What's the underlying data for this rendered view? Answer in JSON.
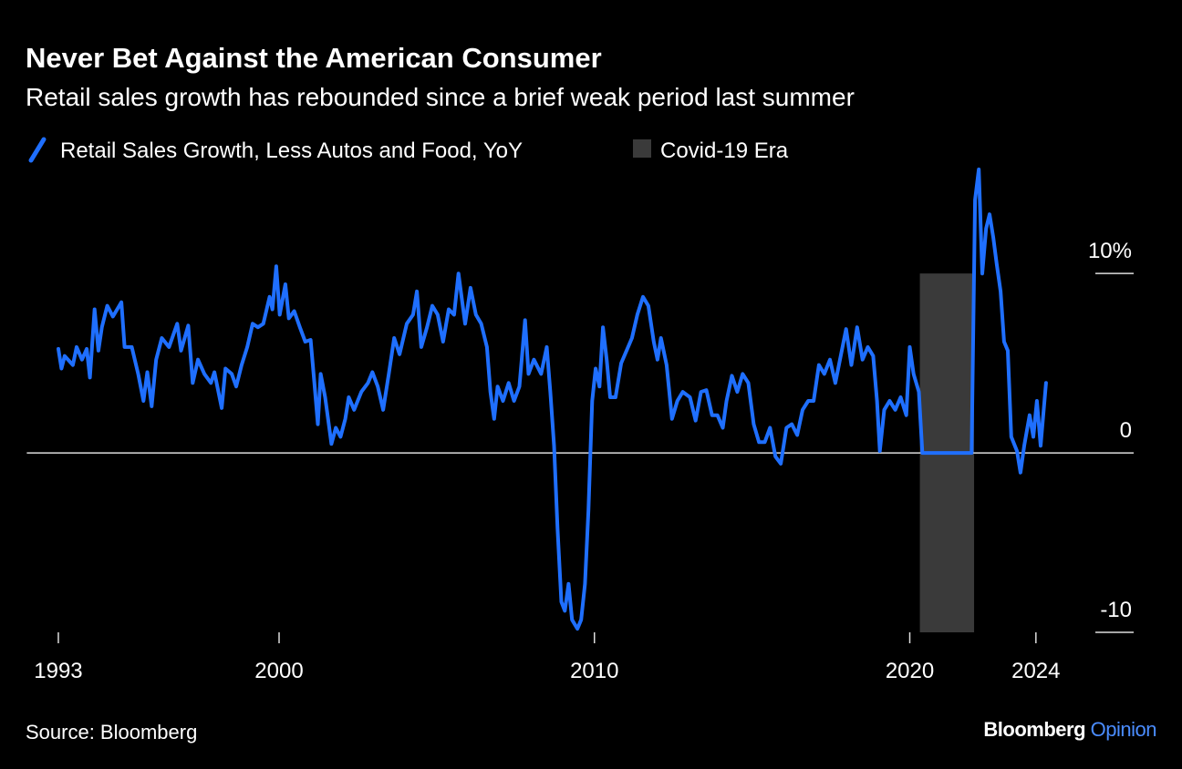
{
  "chart_data": {
    "type": "line",
    "title": "Never Bet Against the American Consumer",
    "subtitle": "Retail sales growth has rebounded since a brief weak period last summer",
    "source": "Source: Bloomberg",
    "brand": "Bloomberg",
    "brand_accent": "Opinion",
    "xlim": [
      1992,
      2027.1
    ],
    "xticks": [
      1993,
      2000,
      2010,
      2020,
      2024
    ],
    "ylim": [
      -10,
      16
    ],
    "yticks": [
      {
        "value": 10,
        "label": "10%"
      },
      0,
      -10
    ],
    "shaded_regions": [
      {
        "name": "Covid-19 Era",
        "start": 2020.32,
        "end": 2022.04,
        "ymin": -10,
        "ymax": 10,
        "color": "#3a3a3a"
      }
    ],
    "x": [
      1993.0,
      1993.1,
      1993.2,
      1993.46,
      1993.58,
      1993.75,
      1993.9,
      1994.0,
      1994.15,
      1994.27,
      1994.38,
      1994.55,
      1994.73,
      1995.0,
      1995.1,
      1995.33,
      1995.53,
      1995.7,
      1995.82,
      1995.96,
      1996.1,
      1996.28,
      1996.51,
      1996.77,
      1996.89,
      1997.12,
      1997.26,
      1997.43,
      1997.63,
      1997.84,
      1997.95,
      1998.18,
      1998.3,
      1998.5,
      1998.64,
      1998.81,
      1998.99,
      1999.16,
      1999.33,
      1999.5,
      1999.7,
      1999.79,
      1999.91,
      2000.02,
      2000.2,
      2000.31,
      2000.48,
      2000.66,
      2000.83,
      2001.0,
      2001.12,
      2001.23,
      2001.32,
      2001.46,
      2001.66,
      2001.8,
      2001.95,
      2002.1,
      2002.21,
      2002.38,
      2002.61,
      2002.82,
      2002.96,
      2003.13,
      2003.3,
      2003.48,
      2003.65,
      2003.82,
      2004.05,
      2004.25,
      2004.37,
      2004.51,
      2004.69,
      2004.86,
      2005.03,
      2005.2,
      2005.38,
      2005.55,
      2005.69,
      2005.9,
      2006.07,
      2006.24,
      2006.41,
      2006.59,
      2006.7,
      2006.82,
      2006.93,
      2007.1,
      2007.28,
      2007.45,
      2007.62,
      2007.8,
      2007.91,
      2008.08,
      2008.31,
      2008.49,
      2008.6,
      2008.72,
      2008.83,
      2008.95,
      2009.06,
      2009.18,
      2009.29,
      2009.46,
      2009.58,
      2009.7,
      2009.81,
      2009.93,
      2010.04,
      2010.16,
      2010.27,
      2010.39,
      2010.5,
      2010.67,
      2010.85,
      2011.02,
      2011.19,
      2011.36,
      2011.54,
      2011.71,
      2011.88,
      2012.0,
      2012.11,
      2012.29,
      2012.46,
      2012.63,
      2012.8,
      2013.03,
      2013.21,
      2013.38,
      2013.55,
      2013.73,
      2013.9,
      2014.07,
      2014.19,
      2014.36,
      2014.53,
      2014.7,
      2014.88,
      2015.05,
      2015.22,
      2015.4,
      2015.57,
      2015.74,
      2015.91,
      2016.09,
      2016.26,
      2016.43,
      2016.6,
      2016.78,
      2016.95,
      2017.12,
      2017.29,
      2017.47,
      2017.64,
      2017.81,
      2017.98,
      2018.15,
      2018.33,
      2018.5,
      2018.67,
      2018.84,
      2018.96,
      2019.05,
      2019.19,
      2019.36,
      2019.54,
      2019.71,
      2019.89,
      2020.0,
      2020.12,
      2020.29,
      2020.4,
      2021.96,
      2022.07,
      2022.19,
      2022.3,
      2022.42,
      2022.53,
      2022.65,
      2022.76,
      2022.88,
      2022.99,
      2023.11,
      2023.22,
      2023.4,
      2023.51,
      2023.63,
      2023.8,
      2023.92,
      2024.03,
      2024.15,
      2024.32
    ],
    "series": [
      {
        "name": "Retail Sales Growth, Less Autos and Food, YoY",
        "color": "#1f6fff",
        "values": [
          5.8,
          4.7,
          5.4,
          4.9,
          5.9,
          5.2,
          5.8,
          4.2,
          8.0,
          5.7,
          7.0,
          8.2,
          7.6,
          8.4,
          5.9,
          5.9,
          4.4,
          2.9,
          4.5,
          2.6,
          5.2,
          6.4,
          5.9,
          7.2,
          5.7,
          7.1,
          3.9,
          5.2,
          4.4,
          3.9,
          4.5,
          2.5,
          4.7,
          4.4,
          3.7,
          4.9,
          5.9,
          7.2,
          7.0,
          7.2,
          8.7,
          8.0,
          10.4,
          7.7,
          9.4,
          7.5,
          7.9,
          7.0,
          6.2,
          6.3,
          3.9,
          1.6,
          4.4,
          3.1,
          0.5,
          1.4,
          0.9,
          1.9,
          3.1,
          2.4,
          3.4,
          3.9,
          4.5,
          3.7,
          2.4,
          4.4,
          6.4,
          5.5,
          7.2,
          7.7,
          9.0,
          5.9,
          7.0,
          8.2,
          7.7,
          6.2,
          8.0,
          7.7,
          10.0,
          7.2,
          9.2,
          7.7,
          7.2,
          5.9,
          3.4,
          1.9,
          3.7,
          2.9,
          3.9,
          2.9,
          3.7,
          7.4,
          4.4,
          5.2,
          4.4,
          5.9,
          3.4,
          0.4,
          -4.2,
          -8.3,
          -8.8,
          -7.3,
          -9.3,
          -9.8,
          -9.3,
          -7.3,
          -3.2,
          2.9,
          4.7,
          3.7,
          7.0,
          5.2,
          3.1,
          3.1,
          5.0,
          5.7,
          6.4,
          7.7,
          8.7,
          8.2,
          6.2,
          5.2,
          6.4,
          4.9,
          1.9,
          2.9,
          3.4,
          3.1,
          1.8,
          3.4,
          3.5,
          2.1,
          2.1,
          1.4,
          2.9,
          4.3,
          3.4,
          4.4,
          3.9,
          1.6,
          0.6,
          0.6,
          1.4,
          -0.2,
          -0.6,
          1.4,
          1.6,
          1.0,
          2.4,
          2.9,
          2.9,
          4.9,
          4.4,
          5.2,
          3.9,
          5.4,
          6.9,
          4.9,
          7.0,
          5.2,
          5.9,
          5.4,
          2.9,
          0.1,
          2.4,
          2.9,
          2.4,
          3.1,
          2.1,
          5.9,
          4.4,
          3.4,
          0,
          0,
          14.1,
          15.8,
          10.0,
          12.5,
          13.3,
          12.0,
          10.5,
          9.0,
          6.2,
          5.7,
          0.9,
          0.1,
          -1.1,
          0.4,
          2.1,
          0.9,
          2.9,
          0.4,
          3.9
        ]
      }
    ]
  }
}
